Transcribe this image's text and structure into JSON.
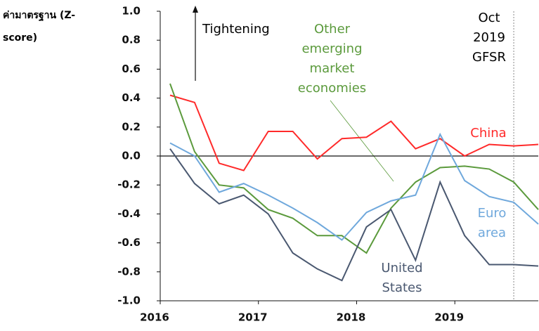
{
  "chart_data": {
    "type": "line",
    "y_axis_label": "ค่ามาตรฐาน (Z-score)",
    "annotations": [
      "Tightening",
      "Oct 2019 GFSR"
    ],
    "x": [
      2016.1,
      2016.35,
      2016.6,
      2016.85,
      2017.1,
      2017.35,
      2017.6,
      2017.85,
      2018.1,
      2018.35,
      2018.6,
      2018.85,
      2019.1,
      2019.35,
      2019.6,
      2019.85
    ],
    "xlim": [
      2016,
      2019.85
    ],
    "xticks": [
      2016,
      2017,
      2018,
      2019
    ],
    "ylim": [
      -1.0,
      1.0
    ],
    "yticks": [
      {
        "value": 1.0,
        "label": "1.0"
      },
      0.8,
      0.6,
      0.4,
      0.2,
      {
        "value": 0.0,
        "label": "0.0"
      },
      -0.2,
      -0.4,
      -0.6,
      -0.8,
      {
        "value": -1.0,
        "label": "-1.0"
      }
    ],
    "vline": 2019.6,
    "series": [
      {
        "name": "China",
        "color": "#ff2a2a",
        "values": [
          0.42,
          0.37,
          -0.05,
          -0.1,
          0.17,
          0.17,
          -0.02,
          0.12,
          0.13,
          0.24,
          0.05,
          0.12,
          0.0,
          0.08,
          0.07,
          0.08
        ]
      },
      {
        "name": "Other emerging market economies",
        "color": "#5b9a3c",
        "values": [
          0.5,
          0.03,
          -0.2,
          -0.22,
          -0.37,
          -0.43,
          -0.55,
          -0.55,
          -0.67,
          -0.36,
          -0.18,
          -0.08,
          -0.07,
          -0.09,
          -0.18,
          -0.37
        ]
      },
      {
        "name": "Euro area",
        "color": "#6fa8dc",
        "values": [
          0.09,
          0.0,
          -0.25,
          -0.19,
          -0.27,
          -0.36,
          -0.46,
          -0.58,
          -0.39,
          -0.31,
          -0.27,
          0.15,
          -0.17,
          -0.28,
          -0.32,
          -0.47
        ]
      },
      {
        "name": "United States",
        "color": "#4a5870",
        "values": [
          0.05,
          -0.19,
          -0.33,
          -0.27,
          -0.4,
          -0.67,
          -0.78,
          -0.86,
          -0.49,
          -0.37,
          -0.72,
          -0.18,
          -0.55,
          -0.75,
          -0.75,
          -0.76
        ]
      }
    ]
  }
}
